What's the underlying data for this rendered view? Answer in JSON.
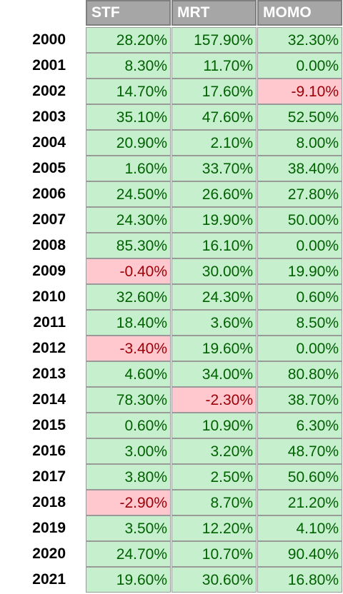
{
  "table": {
    "columns": [
      "STF",
      "MRT",
      "MOMO"
    ],
    "rows": [
      [
        "2000",
        "28.20%",
        "157.90%",
        "32.30%"
      ],
      [
        "2001",
        "8.30%",
        "11.70%",
        "0.00%"
      ],
      [
        "2002",
        "14.70%",
        "17.60%",
        "-9.10%"
      ],
      [
        "2003",
        "35.10%",
        "47.60%",
        "52.50%"
      ],
      [
        "2004",
        "20.90%",
        "2.10%",
        "8.00%"
      ],
      [
        "2005",
        "1.60%",
        "33.70%",
        "38.40%"
      ],
      [
        "2006",
        "24.50%",
        "26.60%",
        "27.80%"
      ],
      [
        "2007",
        "24.30%",
        "19.90%",
        "50.00%"
      ],
      [
        "2008",
        "85.30%",
        "16.10%",
        "0.00%"
      ],
      [
        "2009",
        "-0.40%",
        "30.00%",
        "19.90%"
      ],
      [
        "2010",
        "32.60%",
        "24.30%",
        "0.60%"
      ],
      [
        "2011",
        "18.40%",
        "3.60%",
        "8.50%"
      ],
      [
        "2012",
        "-3.40%",
        "19.60%",
        "0.00%"
      ],
      [
        "2013",
        "4.60%",
        "34.00%",
        "80.80%"
      ],
      [
        "2014",
        "78.30%",
        "-2.30%",
        "38.70%"
      ],
      [
        "2015",
        "0.60%",
        "10.90%",
        "6.30%"
      ],
      [
        "2016",
        "3.00%",
        "3.20%",
        "48.70%"
      ],
      [
        "2017",
        "3.80%",
        "2.50%",
        "50.60%"
      ],
      [
        "2018",
        "-2.90%",
        "8.70%",
        "21.20%"
      ],
      [
        "2019",
        "3.50%",
        "12.20%",
        "4.10%"
      ],
      [
        "2020",
        "24.70%",
        "10.70%",
        "90.40%"
      ],
      [
        "2021",
        "19.60%",
        "30.60%",
        "16.80%"
      ]
    ]
  }
}
